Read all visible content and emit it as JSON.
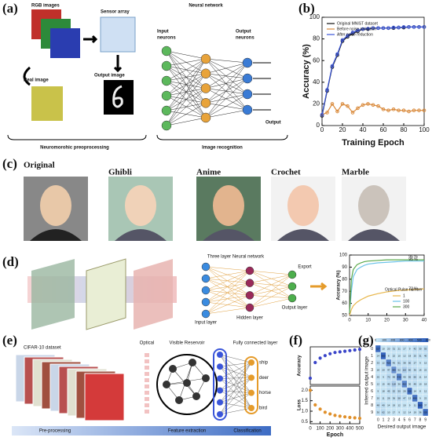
{
  "panels": {
    "a": "(a)",
    "b": "(b)",
    "c": "(c)",
    "d": "(d)",
    "e": "(e)",
    "f": "(f)",
    "g": "(g)"
  },
  "a": {
    "rgb": "RGB images",
    "sensor": "Sensor array",
    "nn": "Neural network",
    "input": "Input",
    "input2": "neurons",
    "output": "Output",
    "output2": "neurons",
    "real": "Real image",
    "outimg": "Output image",
    "out": "Output",
    "pre": "Neuromorohic preoprocessing",
    "rec": "Image recognition"
  },
  "c": {
    "labels": [
      "Original",
      "Ghibli",
      "Anime",
      "Crochet",
      "Marble"
    ]
  },
  "d": {
    "title": "Three layer Neural network",
    "export": "Export",
    "input": "Input layer",
    "hidden": "Hidden layer",
    "output": "Output layer"
  },
  "e": {
    "dataset": "CIFAR-10 dataset",
    "optical": "Optical",
    "reservoir": "Visible Reservoir",
    "fc": "Fully connected layer",
    "classes": [
      "ship",
      "deer",
      "horse",
      "bird"
    ],
    "pre": "Pre-processing",
    "feat": "Feature extraction",
    "cls": "Classification"
  },
  "chart_data": [
    {
      "type": "line",
      "xlabel": "Training Epoch",
      "ylabel": "Accuracy (%)",
      "xlim": [
        0,
        100
      ],
      "ylim": [
        0,
        100
      ],
      "xticks": [
        0,
        20,
        40,
        60,
        80,
        100
      ],
      "yticks": [
        0,
        20,
        40,
        60,
        80,
        100
      ],
      "legend": "upper-left",
      "markers": true,
      "x": [
        0,
        5,
        10,
        15,
        20,
        25,
        30,
        35,
        40,
        45,
        50,
        55,
        60,
        65,
        70,
        75,
        80,
        85,
        90,
        95,
        100
      ],
      "series": [
        {
          "name": "Original MNIST dataset",
          "color": "#111111",
          "values": [
            9,
            32,
            54,
            65,
            78,
            82,
            85,
            87,
            89,
            89,
            90,
            90,
            90,
            90,
            90,
            90.5,
            90.5,
            91,
            91,
            91,
            91
          ]
        },
        {
          "name": "Before noise reduction",
          "color": "#d9893a",
          "values": [
            10,
            12,
            20,
            13,
            20,
            18,
            12,
            16,
            19,
            20,
            19,
            18,
            15,
            14,
            15,
            14,
            14,
            13,
            14,
            14,
            14
          ]
        },
        {
          "name": "After noise reduction",
          "color": "#3a55d9",
          "values": [
            10,
            33,
            55,
            66,
            79,
            83,
            86,
            88,
            89,
            89.5,
            90,
            90,
            90,
            90,
            90.5,
            90.5,
            91,
            91,
            91,
            91,
            91
          ]
        }
      ]
    },
    {
      "type": "line",
      "ylabel": "Accuracy (%)",
      "xlim": [
        0,
        40
      ],
      "ylim": [
        50,
        100
      ],
      "xticks": [
        0,
        10,
        20,
        30,
        40
      ],
      "yticks": [
        50,
        60,
        70,
        80,
        90,
        100
      ],
      "legend_title": "Optical Pulse number",
      "legend": "lower-right",
      "markers": false,
      "x": [
        0,
        1,
        2,
        4,
        6,
        8,
        10,
        15,
        20,
        25,
        30,
        35,
        40
      ],
      "series": [
        {
          "name": "1",
          "color": "#e8b64a",
          "values": [
            50,
            55,
            58,
            61,
            63,
            64.5,
            66,
            68,
            69.5,
            70.5,
            71,
            71.5,
            72
          ]
        },
        {
          "name": "100",
          "color": "#6cc3e8",
          "values": [
            52,
            70,
            82,
            88,
            90,
            91.5,
            92.5,
            93.5,
            94,
            94.5,
            95,
            95,
            95
          ]
        },
        {
          "name": "300",
          "color": "#5aa84a",
          "values": [
            52,
            80,
            88,
            92,
            93.5,
            94.5,
            95,
            95.5,
            96,
            96,
            96,
            96,
            96
          ]
        }
      ],
      "annotations": [
        "96 %",
        "95 %",
        "72 %"
      ]
    },
    {
      "type": "line",
      "ylabel": "Accuracy",
      "xlim": [
        0,
        500
      ],
      "ylim": [
        0.2,
        0.8
      ],
      "dots": true,
      "x": [
        0,
        50,
        100,
        150,
        200,
        250,
        300,
        350,
        400,
        450,
        500
      ],
      "series": [
        {
          "name": "Accuracy",
          "color": "#3a45c9",
          "values": [
            0.3,
            0.55,
            0.62,
            0.66,
            0.69,
            0.71,
            0.72,
            0.73,
            0.74,
            0.75,
            0.76
          ]
        }
      ]
    },
    {
      "type": "line",
      "ylabel": "Loss",
      "xlabel": "Epoch",
      "xlim": [
        0,
        500
      ],
      "ylim": [
        0.4,
        2.2
      ],
      "xticks": [
        0,
        100,
        200,
        300,
        400,
        500
      ],
      "yticks": [
        0.5,
        {
          "value": 1,
          "label": "1.0"
        },
        1.5,
        {
          "value": 2,
          "label": "2.0"
        }
      ],
      "dots": true,
      "x": [
        0,
        50,
        100,
        150,
        200,
        250,
        300,
        350,
        400,
        450,
        500
      ],
      "series": [
        {
          "name": "Loss",
          "color": "#e0902a",
          "values": [
            2.0,
            1.3,
            1.1,
            0.95,
            0.87,
            0.8,
            0.76,
            0.73,
            0.7,
            0.68,
            0.66
          ]
        }
      ]
    },
    {
      "type": "heatmap",
      "xlabel": "Desired output image",
      "ylabel": "Inferred output image",
      "categories": [
        "0",
        "1",
        "2",
        "3",
        "4",
        "5",
        "6",
        "7",
        "8",
        "9"
      ],
      "clim": [
        0,
        600
      ],
      "cticks": [
        0,
        100,
        200,
        300,
        400,
        500,
        600
      ],
      "values": [
        [
          527,
          10,
          20,
          31,
          21,
          17,
          9,
          42,
          30,
          55
        ],
        [
          14,
          560,
          8,
          22,
          10,
          12,
          19,
          25,
          31,
          40
        ],
        [
          33,
          12,
          420,
          45,
          61,
          38,
          50,
          27,
          9,
          15
        ],
        [
          18,
          20,
          47,
          360,
          52,
          110,
          60,
          35,
          16,
          22
        ],
        [
          25,
          9,
          70,
          48,
          430,
          40,
          55,
          60,
          11,
          14
        ],
        [
          12,
          15,
          40,
          118,
          36,
          410,
          30,
          49,
          10,
          18
        ],
        [
          9,
          18,
          45,
          52,
          50,
          28,
          520,
          14,
          8,
          12
        ],
        [
          20,
          11,
          28,
          36,
          58,
          47,
          13,
          490,
          9,
          22
        ],
        [
          48,
          40,
          14,
          19,
          12,
          10,
          9,
          11,
          560,
          37
        ],
        [
          30,
          62,
          10,
          17,
          9,
          12,
          14,
          19,
          36,
          520
        ]
      ]
    }
  ]
}
